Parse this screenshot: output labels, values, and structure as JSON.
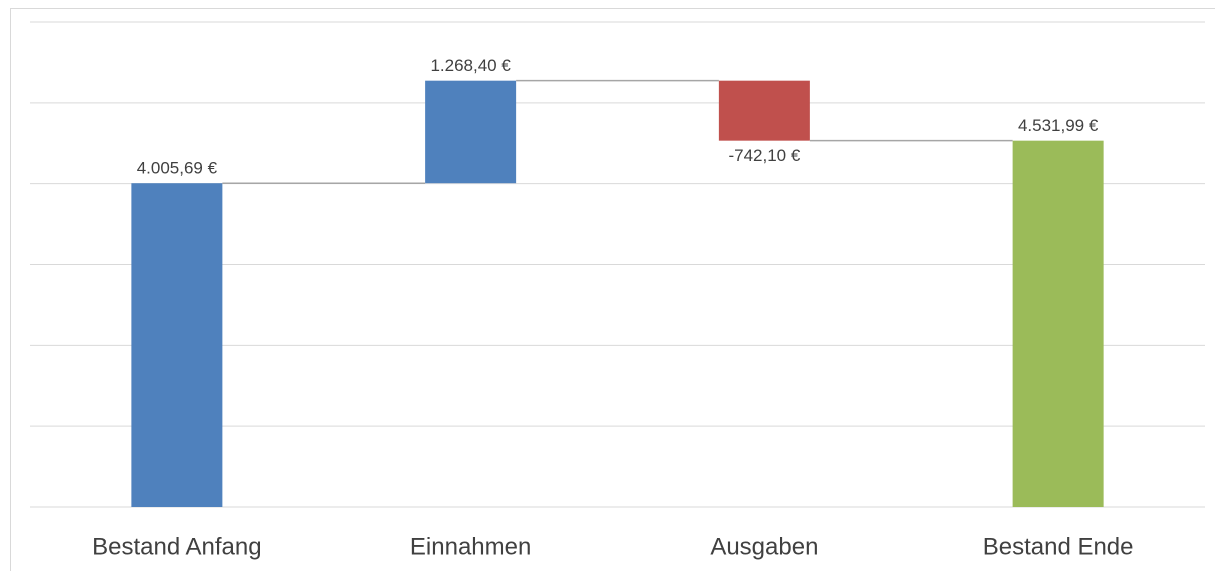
{
  "chart_data": {
    "type": "waterfall",
    "categories": [
      "Bestand Anfang",
      "Einnahmen",
      "Ausgaben",
      "Bestand Ende"
    ],
    "values": [
      4005.69,
      1268.4,
      -742.1,
      4531.99
    ],
    "value_labels": [
      "4.005,69 €",
      "1.268,40 €",
      "-742,10 €",
      "4.531,99 €"
    ],
    "is_total": [
      true,
      false,
      false,
      true
    ],
    "colors": [
      "#4f81bd",
      "#4f81bd",
      "#c0504d",
      "#9bbb59"
    ],
    "ylim": [
      0,
      6000
    ],
    "yticks": [
      0,
      1000,
      2000,
      3000,
      4000,
      5000,
      6000
    ],
    "grid": true
  }
}
